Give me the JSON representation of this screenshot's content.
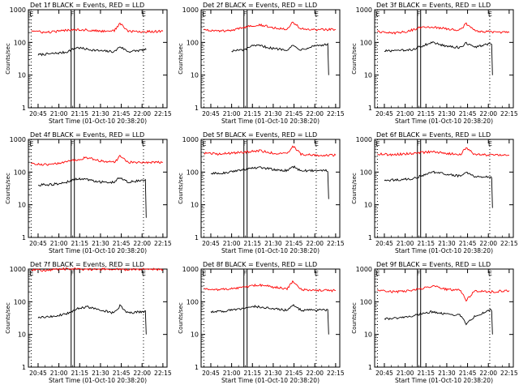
{
  "figure": {
    "xlabel": "Start Time (01-Oct-10 20:38:20)",
    "ylabel": "Counts/sec",
    "x_ticks": [
      "20:45",
      "21:00",
      "21:15",
      "21:30",
      "21:45",
      "22:00",
      "22:15"
    ],
    "y_ticks": [
      "1",
      "10",
      "100",
      "1000"
    ],
    "markers": [
      {
        "label": "E",
        "time": "20:40"
      },
      {
        "label": "F",
        "time": "21:10"
      },
      {
        "label": "E",
        "time": "22:01"
      }
    ],
    "colors": {
      "events": "#000000",
      "lld": "#ff0000",
      "dotted": "#000000"
    }
  },
  "chart_data": [
    {
      "type": "line",
      "title": "Det 1f BLACK = Events, RED = LLD",
      "yscale": "log",
      "ylim": [
        1,
        1000
      ],
      "x_range": [
        "20:38",
        "22:18"
      ],
      "series": [
        {
          "name": "Events",
          "color": "#000000",
          "x": [
            "20:45",
            "20:55",
            "21:05",
            "21:13",
            "21:20",
            "21:30",
            "21:40",
            "21:44",
            "21:50",
            "22:00",
            "22:03"
          ],
          "values": [
            42,
            45,
            50,
            70,
            62,
            55,
            52,
            75,
            52,
            58,
            60
          ]
        },
        {
          "name": "LLD",
          "color": "#ff0000",
          "x": [
            "20:40",
            "20:50",
            "21:00",
            "21:10",
            "21:20",
            "21:30",
            "21:40",
            "21:44",
            "21:50",
            "22:00",
            "22:15"
          ],
          "values": [
            230,
            200,
            220,
            250,
            240,
            220,
            230,
            380,
            220,
            210,
            220
          ]
        }
      ]
    },
    {
      "type": "line",
      "title": "Det 2f BLACK = Events, RED = LLD",
      "yscale": "log",
      "ylim": [
        1,
        1000
      ],
      "x_range": [
        "20:38",
        "22:18"
      ],
      "series": [
        {
          "name": "Events",
          "color": "#000000",
          "x": [
            "21:00",
            "21:10",
            "21:13",
            "21:20",
            "21:30",
            "21:40",
            "21:44",
            "21:50",
            "22:00",
            "22:08",
            "22:10"
          ],
          "values": [
            55,
            60,
            75,
            80,
            65,
            60,
            80,
            60,
            80,
            85,
            10
          ]
        },
        {
          "name": "LLD",
          "color": "#ff0000",
          "x": [
            "20:40",
            "20:50",
            "21:00",
            "21:13",
            "21:20",
            "21:30",
            "21:40",
            "21:44",
            "21:50",
            "22:00",
            "22:15"
          ],
          "values": [
            250,
            220,
            230,
            320,
            350,
            280,
            260,
            420,
            260,
            240,
            250
          ]
        }
      ]
    },
    {
      "type": "line",
      "title": "Det 3f BLACK = Events, RED = LLD",
      "yscale": "log",
      "ylim": [
        1,
        1000
      ],
      "x_range": [
        "20:38",
        "22:18"
      ],
      "series": [
        {
          "name": "Events",
          "color": "#000000",
          "x": [
            "20:45",
            "20:55",
            "21:05",
            "21:13",
            "21:20",
            "21:30",
            "21:40",
            "21:44",
            "21:50",
            "22:00",
            "22:03"
          ],
          "values": [
            55,
            55,
            60,
            80,
            100,
            75,
            70,
            95,
            70,
            90,
            10
          ]
        },
        {
          "name": "LLD",
          "color": "#ff0000",
          "x": [
            "20:40",
            "20:50",
            "21:00",
            "21:13",
            "21:20",
            "21:30",
            "21:40",
            "21:44",
            "21:50",
            "22:00",
            "22:15"
          ],
          "values": [
            220,
            190,
            210,
            300,
            300,
            260,
            240,
            380,
            230,
            210,
            200
          ]
        }
      ]
    },
    {
      "type": "line",
      "title": "Det 4f BLACK = Events, RED = LLD",
      "yscale": "log",
      "ylim": [
        1,
        1000
      ],
      "x_range": [
        "20:38",
        "22:18"
      ],
      "series": [
        {
          "name": "Events",
          "color": "#000000",
          "x": [
            "20:45",
            "20:55",
            "21:05",
            "21:13",
            "21:20",
            "21:30",
            "21:40",
            "21:44",
            "21:50",
            "22:00",
            "22:03"
          ],
          "values": [
            40,
            42,
            48,
            62,
            60,
            50,
            48,
            70,
            50,
            55,
            4
          ]
        },
        {
          "name": "LLD",
          "color": "#ff0000",
          "x": [
            "20:40",
            "20:50",
            "21:00",
            "21:13",
            "21:20",
            "21:30",
            "21:40",
            "21:44",
            "21:50",
            "22:00",
            "22:15"
          ],
          "values": [
            180,
            170,
            180,
            240,
            280,
            220,
            200,
            300,
            200,
            200,
            200
          ]
        }
      ]
    },
    {
      "type": "line",
      "title": "Det 5f BLACK = Events, RED = LLD",
      "yscale": "log",
      "ylim": [
        1,
        1000
      ],
      "x_range": [
        "20:38",
        "22:18"
      ],
      "series": [
        {
          "name": "Events",
          "color": "#000000",
          "x": [
            "20:45",
            "20:55",
            "21:05",
            "21:13",
            "21:20",
            "21:30",
            "21:40",
            "21:44",
            "21:50",
            "22:00",
            "22:10"
          ],
          "values": [
            90,
            95,
            110,
            130,
            140,
            120,
            110,
            150,
            110,
            110,
            15
          ]
        },
        {
          "name": "LLD",
          "color": "#ff0000",
          "x": [
            "20:40",
            "20:50",
            "21:00",
            "21:13",
            "21:20",
            "21:30",
            "21:40",
            "21:44",
            "21:50",
            "22:00",
            "22:15"
          ],
          "values": [
            380,
            360,
            380,
            420,
            450,
            380,
            360,
            650,
            350,
            330,
            330
          ]
        }
      ]
    },
    {
      "type": "line",
      "title": "Det 6f BLACK = Events, RED = LLD",
      "yscale": "log",
      "ylim": [
        1,
        1000
      ],
      "x_range": [
        "20:38",
        "22:18"
      ],
      "series": [
        {
          "name": "Events",
          "color": "#000000",
          "x": [
            "20:45",
            "20:55",
            "21:05",
            "21:13",
            "21:20",
            "21:30",
            "21:40",
            "21:44",
            "21:50",
            "22:00",
            "22:03"
          ],
          "values": [
            55,
            58,
            62,
            80,
            100,
            85,
            75,
            95,
            72,
            70,
            8
          ]
        },
        {
          "name": "LLD",
          "color": "#ff0000",
          "x": [
            "20:40",
            "20:50",
            "21:00",
            "21:13",
            "21:20",
            "21:30",
            "21:40",
            "21:44",
            "21:50",
            "22:00",
            "22:15"
          ],
          "values": [
            360,
            340,
            360,
            400,
            420,
            370,
            350,
            560,
            350,
            330,
            330
          ]
        }
      ]
    },
    {
      "type": "line",
      "title": "Det 7f BLACK = Events, RED = LLD",
      "yscale": "log",
      "ylim": [
        1,
        1000
      ],
      "x_range": [
        "20:38",
        "22:18"
      ],
      "series": [
        {
          "name": "Events",
          "color": "#000000",
          "x": [
            "20:45",
            "20:55",
            "21:05",
            "21:13",
            "21:20",
            "21:30",
            "21:40",
            "21:44",
            "21:50",
            "22:00",
            "22:03"
          ],
          "values": [
            32,
            35,
            42,
            60,
            70,
            55,
            45,
            75,
            45,
            50,
            10
          ]
        },
        {
          "name": "LLD",
          "color": "#ff0000",
          "x": [
            "20:40",
            "20:50",
            "21:00",
            "21:13",
            "21:20",
            "21:30",
            "21:40",
            "21:44",
            "21:50",
            "22:00",
            "22:15"
          ],
          "values": [
            950,
            900,
            1000,
            1000,
            950,
            1000,
            950,
            1000,
            950,
            1000,
            980
          ]
        }
      ]
    },
    {
      "type": "line",
      "title": "Det 8f BLACK = Events, RED = LLD",
      "yscale": "log",
      "ylim": [
        1,
        1000
      ],
      "x_range": [
        "20:38",
        "22:18"
      ],
      "series": [
        {
          "name": "Events",
          "color": "#000000",
          "x": [
            "20:45",
            "20:55",
            "21:05",
            "21:13",
            "21:20",
            "21:30",
            "21:40",
            "21:44",
            "21:50",
            "22:00",
            "22:10"
          ],
          "values": [
            50,
            52,
            58,
            72,
            70,
            62,
            55,
            80,
            55,
            55,
            10
          ]
        },
        {
          "name": "LLD",
          "color": "#ff0000",
          "x": [
            "20:40",
            "20:50",
            "21:00",
            "21:13",
            "21:20",
            "21:30",
            "21:40",
            "21:44",
            "21:50",
            "22:00",
            "22:15"
          ],
          "values": [
            250,
            230,
            250,
            300,
            330,
            280,
            250,
            400,
            240,
            220,
            220
          ]
        }
      ]
    },
    {
      "type": "line",
      "title": "Det 9f BLACK = Events, RED = LLD",
      "yscale": "log",
      "ylim": [
        1,
        1000
      ],
      "x_range": [
        "20:38",
        "22:18"
      ],
      "series": [
        {
          "name": "Events",
          "color": "#000000",
          "x": [
            "20:45",
            "20:55",
            "21:05",
            "21:13",
            "21:20",
            "21:30",
            "21:40",
            "21:44",
            "21:50",
            "22:00",
            "22:03"
          ],
          "values": [
            30,
            32,
            36,
            45,
            50,
            42,
            38,
            20,
            35,
            55,
            10
          ]
        },
        {
          "name": "LLD",
          "color": "#ff0000",
          "x": [
            "20:40",
            "20:50",
            "21:00",
            "21:13",
            "21:20",
            "21:30",
            "21:40",
            "21:44",
            "21:50",
            "22:00",
            "22:15"
          ],
          "values": [
            220,
            200,
            210,
            260,
            300,
            240,
            220,
            110,
            210,
            200,
            220
          ]
        }
      ]
    }
  ]
}
